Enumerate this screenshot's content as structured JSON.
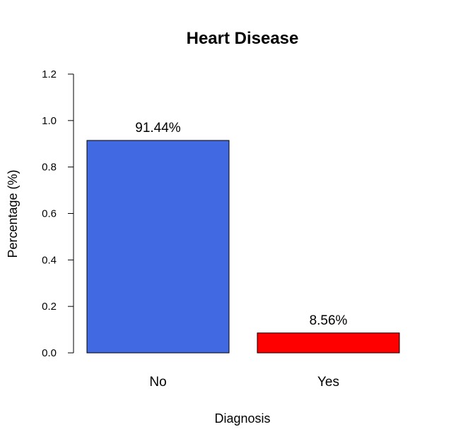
{
  "chart_data": {
    "type": "bar",
    "title": "Heart Disease",
    "xlabel": "Diagnosis",
    "ylabel": "Percentage (%)",
    "categories": [
      "No",
      "Yes"
    ],
    "values": [
      0.9144,
      0.0856
    ],
    "data_labels": [
      "91.44%",
      "8.56%"
    ],
    "colors": [
      "#4169E1",
      "#FF0000"
    ],
    "ylim": [
      0,
      1.2
    ],
    "yticks": [
      0.0,
      0.2,
      0.4,
      0.6,
      0.8,
      1.0,
      1.2
    ],
    "ytick_labels": [
      "0.0",
      "0.2",
      "0.4",
      "0.6",
      "0.8",
      "1.0",
      "1.2"
    ],
    "grid": false,
    "legend": "none"
  }
}
